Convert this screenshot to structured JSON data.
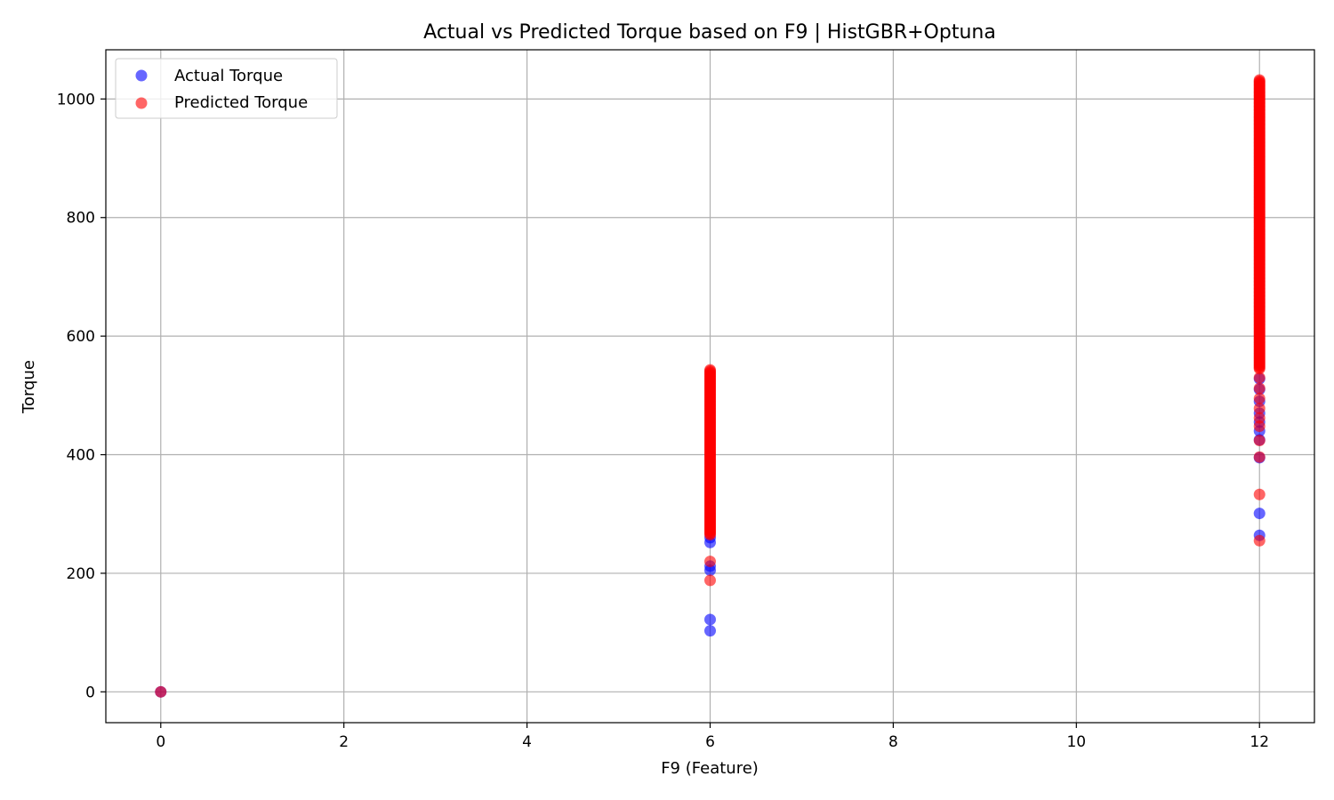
{
  "chart_data": {
    "type": "scatter",
    "title": "Actual vs Predicted Torque based on F9 | HistGBR+Optuna",
    "xlabel": "F9 (Feature)",
    "ylabel": "Torque",
    "xlim": [
      -0.6,
      12.6
    ],
    "ylim": [
      -52,
      1083
    ],
    "x_ticks": [
      0,
      2,
      4,
      6,
      8,
      10,
      12
    ],
    "y_ticks": [
      0,
      200,
      400,
      600,
      800,
      1000
    ],
    "grid": true,
    "legend_position": "top-left",
    "series": [
      {
        "name": "Actual Torque",
        "color": "#0000ff",
        "alpha": 0.6,
        "points": [
          {
            "x": 0,
            "y": 0
          },
          {
            "x": 6,
            "y": 103
          },
          {
            "x": 6,
            "y": 122
          },
          {
            "x": 6,
            "y": 205
          },
          {
            "x": 6,
            "y": 212
          },
          {
            "x": 6,
            "y": 252
          },
          {
            "x": 6,
            "y": 260
          },
          {
            "x": 12,
            "y": 264
          },
          {
            "x": 12,
            "y": 301
          },
          {
            "x": 12,
            "y": 395
          },
          {
            "x": 12,
            "y": 425
          },
          {
            "x": 12,
            "y": 440
          },
          {
            "x": 12,
            "y": 455
          },
          {
            "x": 12,
            "y": 470
          },
          {
            "x": 12,
            "y": 490
          },
          {
            "x": 12,
            "y": 510
          },
          {
            "x": 12,
            "y": 528
          }
        ]
      },
      {
        "name": "Predicted Torque",
        "color": "#ff0000",
        "alpha": 0.6,
        "points": [
          {
            "x": 0,
            "y": 0
          },
          {
            "x": 6,
            "y": 188
          },
          {
            "x": 6,
            "y": 220
          }
        ]
      }
    ],
    "dense_bands": [
      {
        "series": "Predicted Torque",
        "x": 6,
        "y_min": 265,
        "y_max": 543
      },
      {
        "series": "Predicted Torque",
        "x": 12,
        "y_min": 545,
        "y_max": 1032
      }
    ],
    "predicted_extra_points": [
      {
        "x": 12,
        "y": 255
      },
      {
        "x": 12,
        "y": 333
      },
      {
        "x": 12,
        "y": 396
      },
      {
        "x": 12,
        "y": 424
      },
      {
        "x": 12,
        "y": 448
      },
      {
        "x": 12,
        "y": 462
      },
      {
        "x": 12,
        "y": 478
      },
      {
        "x": 12,
        "y": 495
      },
      {
        "x": 12,
        "y": 512
      },
      {
        "x": 12,
        "y": 530
      }
    ]
  }
}
